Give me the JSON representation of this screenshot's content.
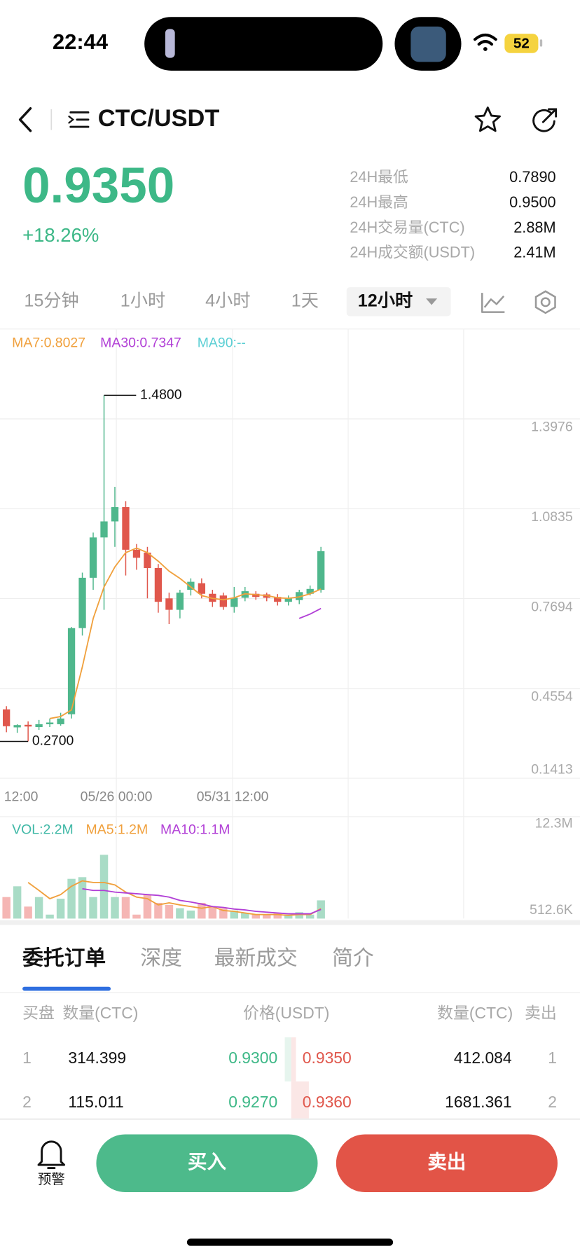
{
  "status_bar": {
    "time": "22:44",
    "battery": "52"
  },
  "header": {
    "pair": "CTC/USDT"
  },
  "ticker": {
    "price": "0.9350",
    "change": "+18.26%",
    "stats": [
      {
        "label": "24H最低",
        "value": "0.7890"
      },
      {
        "label": "24H最高",
        "value": "0.9500"
      },
      {
        "label": "24H交易量(CTC)",
        "value": "2.88M"
      },
      {
        "label": "24H成交额(USDT)",
        "value": "2.41M"
      }
    ]
  },
  "timeframes": {
    "options": [
      "15分钟",
      "1小时",
      "4小时",
      "1天",
      "12小时"
    ],
    "selected": 4
  },
  "chart_data": [
    {
      "type": "candlestick",
      "legend": [
        {
          "label": "MA7:0.8027",
          "color": "#f0a03c"
        },
        {
          "label": "MA30:0.7347",
          "color": "#b13fd6"
        },
        {
          "label": "MA90:--",
          "color": "#5bcfd4"
        }
      ],
      "categories": [
        null,
        null,
        null,
        null,
        null,
        null,
        null,
        null,
        null,
        null,
        null,
        null,
        null,
        null,
        null,
        null,
        null,
        null,
        null,
        null,
        null,
        null,
        null,
        null,
        null,
        null,
        null,
        null,
        null,
        null
      ],
      "x_labels": [
        "12:00",
        "05/26 00:00",
        "05/31 12:00"
      ],
      "open": [
        0.382,
        0.319,
        0.328,
        0.32,
        0.33,
        0.33,
        0.365,
        0.666,
        0.842,
        0.983,
        1.039,
        1.089,
        0.94,
        0.93,
        0.876,
        0.77,
        0.73,
        0.8,
        0.823,
        0.786,
        0.78,
        0.74,
        0.772,
        0.786,
        0.784,
        0.775,
        0.758,
        0.764,
        0.786,
        0.8
      ],
      "high": [
        0.393,
        0.33,
        0.34,
        0.345,
        0.35,
        0.37,
        0.67,
        0.86,
        1.0,
        1.48,
        1.16,
        1.11,
        0.96,
        0.95,
        0.89,
        0.79,
        0.8,
        0.84,
        0.84,
        0.8,
        0.79,
        0.81,
        0.81,
        0.795,
        0.79,
        0.785,
        0.78,
        0.8,
        0.815,
        0.95
      ],
      "low": [
        0.302,
        0.3,
        0.27,
        0.31,
        0.32,
        0.325,
        0.35,
        0.64,
        0.8,
        0.73,
        0.95,
        0.85,
        0.87,
        0.77,
        0.72,
        0.68,
        0.7,
        0.78,
        0.77,
        0.74,
        0.73,
        0.72,
        0.76,
        0.765,
        0.76,
        0.745,
        0.745,
        0.75,
        0.78,
        0.79
      ],
      "close": [
        0.323,
        0.327,
        0.322,
        0.33,
        0.336,
        0.35,
        0.666,
        0.842,
        0.983,
        1.039,
        1.089,
        0.94,
        0.912,
        0.876,
        0.758,
        0.73,
        0.79,
        0.828,
        0.786,
        0.758,
        0.74,
        0.772,
        0.795,
        0.775,
        0.772,
        0.758,
        0.772,
        0.792,
        0.803,
        0.935
      ],
      "up_color": "#4fb78c",
      "down_color": "#e0574c",
      "series": [
        {
          "color": "#f0a03c",
          "values": [
            null,
            null,
            null,
            null,
            0.35,
            0.357,
            0.38,
            0.53,
            0.7,
            0.81,
            0.88,
            0.93,
            0.946,
            0.93,
            0.9,
            0.865,
            0.84,
            0.81,
            0.78,
            0.77,
            0.765,
            0.772,
            0.786,
            0.783,
            0.78,
            0.772,
            0.77,
            0.775,
            0.786,
            0.8027
          ]
        },
        {
          "color": "#b13fd6",
          "values": [
            null,
            null,
            null,
            null,
            null,
            null,
            null,
            null,
            null,
            null,
            null,
            null,
            null,
            null,
            null,
            null,
            null,
            null,
            null,
            null,
            null,
            null,
            null,
            null,
            null,
            null,
            null,
            0.7,
            0.715,
            0.7347
          ]
        }
      ],
      "annotations": [
        {
          "value": 1.48,
          "label": "1.4800"
        },
        {
          "value": 0.27,
          "label": "0.2700"
        }
      ],
      "ylim": [
        0.1413,
        1.7118
      ],
      "yticks": [
        1.3976,
        1.0835,
        0.7694,
        0.4554,
        0.1413
      ],
      "grid": true
    },
    {
      "type": "bar",
      "legend": [
        {
          "label": "VOL:2.2M",
          "color": "#3fb8a6"
        },
        {
          "label": "MA5:1.2M",
          "color": "#f0a03c"
        },
        {
          "label": "MA10:1.1M",
          "color": "#b13fd6"
        }
      ],
      "values": [
        2600000,
        3900000,
        1450000,
        2600000,
        480000,
        2400000,
        4800000,
        5000000,
        2600000,
        7700000,
        2600000,
        2600000,
        480000,
        2900000,
        1900000,
        1650000,
        1250000,
        970000,
        1900000,
        1450000,
        1250000,
        970000,
        680000,
        480000,
        480000,
        680000,
        480000,
        770000,
        480000,
        2200000
      ],
      "up_color": "#a9dcc6",
      "down_color": "#f5b6b4",
      "series": [
        {
          "color": "#f0a03c",
          "values": [
            null,
            null,
            4360000,
            3400000,
            2400000,
            2900000,
            3900000,
            4550000,
            4360000,
            4360000,
            4070000,
            3200000,
            2600000,
            2400000,
            1650000,
            1900000,
            1650000,
            1450000,
            1250000,
            1450000,
            970000,
            870000,
            680000,
            480000,
            480000,
            480000,
            390000,
            480000,
            480000,
            1200000
          ]
        },
        {
          "color": "#b13fd6",
          "values": [
            null,
            null,
            null,
            null,
            null,
            null,
            null,
            3600000,
            3400000,
            3400000,
            3200000,
            3100000,
            3000000,
            2900000,
            2800000,
            2600000,
            2200000,
            2000000,
            1750000,
            1450000,
            1350000,
            1150000,
            1050000,
            870000,
            770000,
            680000,
            580000,
            580000,
            580000,
            1100000
          ]
        }
      ],
      "ylim": [
        0,
        12300000
      ],
      "yticks": [
        {
          "value": 12300000,
          "label": "12.3M"
        },
        {
          "value": 512600,
          "label": "512.6K"
        }
      ]
    }
  ],
  "order_book": {
    "tabs": [
      "委托订单",
      "深度",
      "最新成交",
      "简介"
    ],
    "selected": 0,
    "columns": [
      "买盘",
      "数量(CTC)",
      "价格(USDT)",
      "数量(CTC)",
      "卖出"
    ],
    "rows": [
      [
        "1",
        "314.399",
        "0.9300",
        "0.9350",
        "412.084",
        "1"
      ],
      [
        "2",
        "115.011",
        "0.9270",
        "0.9360",
        "1681.361",
        "2"
      ]
    ]
  },
  "actions": {
    "alert": "预警",
    "buy": "买入",
    "sell": "卖出"
  }
}
